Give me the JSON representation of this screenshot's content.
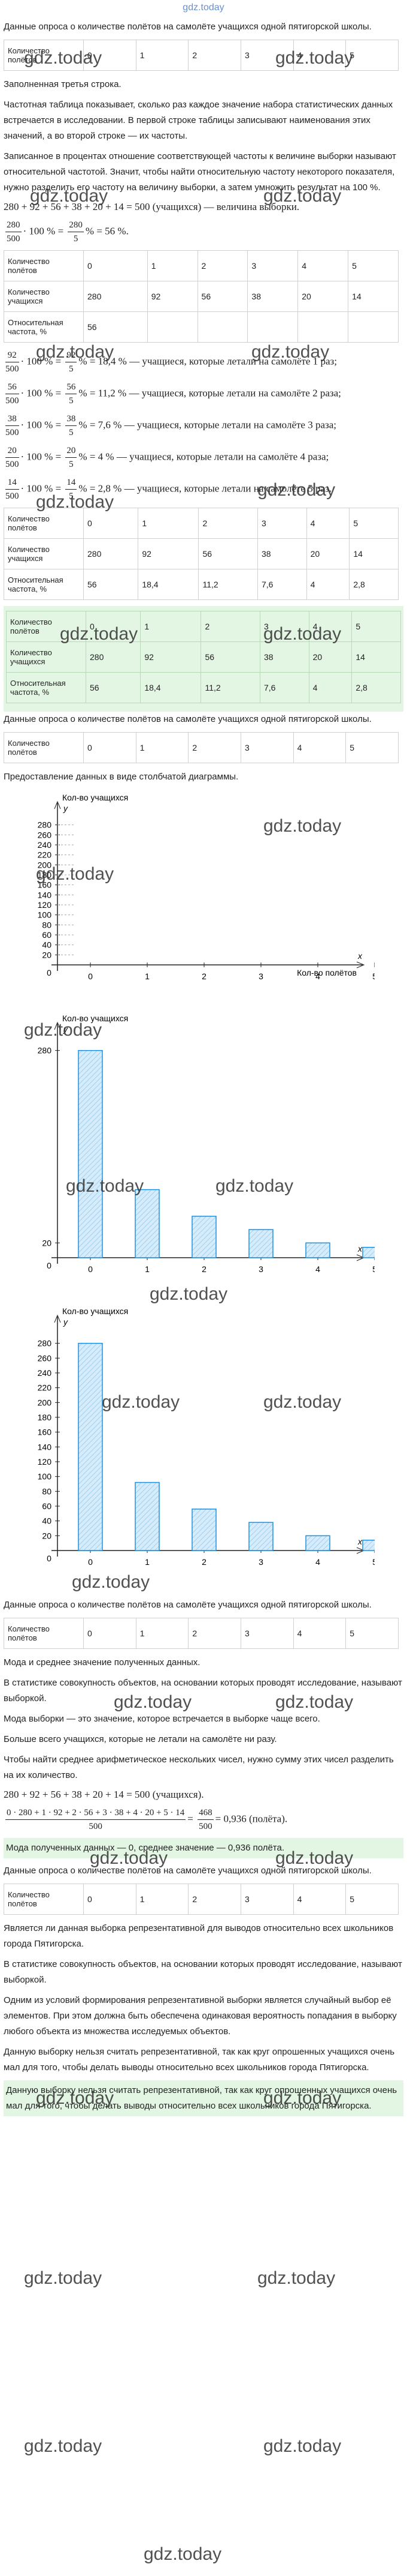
{
  "site": "gdz.today",
  "watermark": "gdz.today",
  "blocks": [
    {
      "kind": "p",
      "text": "Данные опроса о количестве полётов на самолёте учащихся одной пятигорской школы."
    },
    {
      "kind": "table",
      "rows": [
        [
          "Количество полётов",
          "0",
          "1",
          "2",
          "3",
          "4",
          "5"
        ]
      ]
    },
    {
      "kind": "p",
      "text": "Заполненная третья строка."
    },
    {
      "kind": "p",
      "text": "Частотная таблица показывает, сколько раз каждое значение набора статистических данных встречается в исследовании. В первой строке таблицы записывают наименования этих значений, а во второй строке — их частоты."
    },
    {
      "kind": "p",
      "text": "Записанное в процентах отношение соответствующей частоты к величине выборки называют относительной частотой. Значит, чтобы найти относительную частоту некоторого показателя, нужно разделить его частоту на величину выборки, а затем умножить результат на 100 %."
    },
    {
      "kind": "formula",
      "parts": [
        "280 + 92 + 56 + 38 + 20 + 14 = 500 (учащихся) — величина выборки."
      ]
    },
    {
      "kind": "formula",
      "parts": [
        {
          "n": "280",
          "d": "500"
        },
        "· 100 % =",
        {
          "n": "280",
          "d": "5"
        },
        "% = 56 %."
      ]
    },
    {
      "kind": "table",
      "rows": [
        [
          "Количество полётов",
          "0",
          "1",
          "2",
          "3",
          "4",
          "5"
        ],
        [
          "Количество учащихся",
          "280",
          "92",
          "56",
          "38",
          "20",
          "14"
        ],
        [
          "Относительная частота, %",
          "56"
        ]
      ]
    },
    {
      "kind": "formula",
      "parts": [
        {
          "n": "92",
          "d": "500"
        },
        "· 100 % =",
        {
          "n": "92",
          "d": "5"
        },
        "% = 18,4 % — учащиеся, которые летали на самолёте 1 раз;"
      ]
    },
    {
      "kind": "formula",
      "parts": [
        {
          "n": "56",
          "d": "500"
        },
        "· 100 % =",
        {
          "n": "56",
          "d": "5"
        },
        "% = 11,2 % — учащиеся, которые летали на самолёте 2 раза;"
      ]
    },
    {
      "kind": "formula",
      "parts": [
        {
          "n": "38",
          "d": "500"
        },
        "· 100 % =",
        {
          "n": "38",
          "d": "5"
        },
        "% = 7,6 % — учащиеся, которые летали на самолёте 3 раза;"
      ]
    },
    {
      "kind": "formula",
      "parts": [
        {
          "n": "20",
          "d": "500"
        },
        "· 100 % =",
        {
          "n": "20",
          "d": "5"
        },
        "% = 4 % — учащиеся, которые летали на самолёте 4 раза;"
      ]
    },
    {
      "kind": "formula",
      "parts": [
        {
          "n": "14",
          "d": "500"
        },
        "· 100 % =",
        {
          "n": "14",
          "d": "5"
        },
        "% = 2,8 % — учащиеся, которые летали на самолёте 5 раз."
      ]
    },
    {
      "kind": "table",
      "rows": [
        [
          "Количество полётов",
          "0",
          "1",
          "2",
          "3",
          "4",
          "5"
        ],
        [
          "Количество учащихся",
          "280",
          "92",
          "56",
          "38",
          "20",
          "14"
        ],
        [
          "Относительная частота, %",
          "56",
          "18,4",
          "11,2",
          "7,6",
          "4",
          "2,8"
        ]
      ]
    },
    {
      "kind": "table",
      "note": true,
      "rows": [
        [
          "Количество полётов",
          "0",
          "1",
          "2",
          "3",
          "4",
          "5"
        ],
        [
          "Количество учащихся",
          "280",
          "92",
          "56",
          "38",
          "20",
          "14"
        ],
        [
          "Относительная частота, %",
          "56",
          "18,4",
          "11,2",
          "7,6",
          "4",
          "2,8"
        ]
      ]
    },
    {
      "kind": "p",
      "text": "Данные опроса о количестве полётов на самолёте учащихся одной пятигорской школы."
    },
    {
      "kind": "table",
      "rows": [
        [
          "Количество полётов",
          "0",
          "1",
          "2",
          "3",
          "4",
          "5"
        ]
      ]
    },
    {
      "kind": "p",
      "text": "Предоставление данных в виде столбчатой диаграммы."
    },
    {
      "kind": "chart",
      "y_label": "Кол-во учащихся",
      "x_label": "Кол-во полётов",
      "y_axis": "y",
      "x_axis": "x",
      "categories": [
        "0",
        "1",
        "2",
        "3",
        "4",
        "5"
      ],
      "values": [],
      "ylim": [
        0,
        300
      ],
      "yticks": [
        20,
        40,
        60,
        80,
        100,
        120,
        140,
        160,
        180,
        200,
        220,
        240,
        260,
        280
      ],
      "origin": "0"
    },
    {
      "kind": "chart",
      "y_label": "Кол-во учащихся",
      "x_label": "",
      "y_axis": "y",
      "x_axis": "x",
      "categories": [
        "0",
        "1",
        "2",
        "3",
        "4",
        "5"
      ],
      "values": [
        280,
        92,
        56,
        38,
        20,
        14
      ],
      "ylim": [
        0,
        300
      ],
      "yticks": [
        20,
        280
      ],
      "origin": "0"
    },
    {
      "kind": "chart",
      "y_label": "Кол-во учащихся",
      "x_label": "",
      "y_axis": "y",
      "x_axis": "x",
      "categories": [
        "0",
        "1",
        "2",
        "3",
        "4",
        "5"
      ],
      "values": [
        280,
        92,
        56,
        38,
        20,
        14
      ],
      "ylim": [
        0,
        300
      ],
      "yticks": [
        20,
        40,
        60,
        80,
        100,
        120,
        140,
        160,
        180,
        200,
        220,
        240,
        260,
        280
      ],
      "origin": "0"
    },
    {
      "kind": "p",
      "text": "Данные опроса о количестве полётов на самолёте учащихся одной пятигорской школы."
    },
    {
      "kind": "table",
      "rows": [
        [
          "Количество полётов",
          "0",
          "1",
          "2",
          "3",
          "4",
          "5"
        ]
      ]
    },
    {
      "kind": "p",
      "text": "Мода и среднее значение полученных данных."
    },
    {
      "kind": "p",
      "text": "В статистике совокупность объектов, на основании которых проводят исследование, называют выборкой."
    },
    {
      "kind": "p",
      "text": "Мода выборки — это значение, которое встречается в выборке чаще всего."
    },
    {
      "kind": "p",
      "text": "Больше всего учащихся, которые не летали на самолёте ни разу."
    },
    {
      "kind": "p",
      "text": "Чтобы найти среднее арифметическое нескольких чисел, нужно сумму этих чисел разделить на их количество."
    },
    {
      "kind": "formula",
      "parts": [
        "280 + 92 + 56 + 38 + 20 + 14 = 500 (учащихся)."
      ]
    },
    {
      "kind": "formula",
      "parts": [
        {
          "n": "0 · 280 + 1 · 92 + 2 · 56 + 3 · 38 + 4 · 20 + 5 · 14",
          "d": "500"
        },
        "=",
        {
          "n": "468",
          "d": "500"
        },
        "= 0,936 (полёта)."
      ]
    },
    {
      "kind": "p",
      "note": true,
      "text": "Мода полученных данных — 0, среднее значение — 0,936 полёта."
    },
    {
      "kind": "p",
      "text": "Данные опроса о количестве полётов на самолёте учащихся одной пятигорской школы."
    },
    {
      "kind": "table",
      "rows": [
        [
          "Количество полётов",
          "0",
          "1",
          "2",
          "3",
          "4",
          "5"
        ]
      ]
    },
    {
      "kind": "p",
      "text": "Является ли данная выборка репрезентативной для выводов относительно всех школьников города Пятигорска."
    },
    {
      "kind": "p",
      "text": "В статистике совокупность объектов, на основании которых проводят исследование, называют выборкой."
    },
    {
      "kind": "p",
      "text": "Одним из условий формирования репрезентативной выборки является случайный выбор её элементов. При этом должна быть обеспечена одинаковая вероятность попадания в выборку любого объекта из множества исследуемых объектов."
    },
    {
      "kind": "p",
      "text": "Данную выборку нельзя считать репрезентативной, так как круг опрошенных учащихся очень мал для того, чтобы делать выводы относительно всех школьников города Пятигорска."
    },
    {
      "kind": "p",
      "note": true,
      "text": "Данную выборку нельзя считать репрезентативной, так как круг опрошенных учащихся очень мал для того, чтобы делать выводы относительно всех школьников города Пятигорска."
    }
  ]
}
